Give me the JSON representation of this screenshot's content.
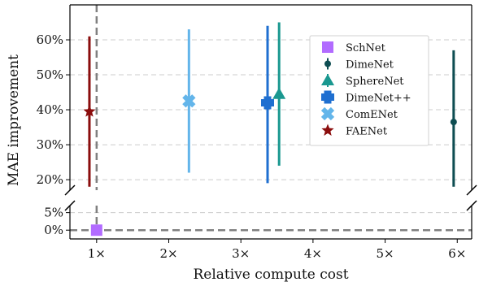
{
  "chart_data": {
    "type": "scatter",
    "xlabel": "Relative compute cost",
    "ylabel": "MAE improvement",
    "x_ticks": [
      "1×",
      "2×",
      "3×",
      "4×",
      "5×",
      "6×"
    ],
    "xlim": [
      0.63,
      6.2
    ],
    "ylim_top": [
      17,
      70
    ],
    "ylim_bottom": [
      -2.5,
      7
    ],
    "y_ticks_top": [
      "20%",
      "30%",
      "40%",
      "50%",
      "60%"
    ],
    "y_ticks_bottom": [
      "0%",
      "5%"
    ],
    "y_tick_values_top": [
      20,
      30,
      40,
      50,
      60
    ],
    "y_tick_values_bottom": [
      0,
      5
    ],
    "grid": true,
    "broken_y_axis": true,
    "reference_lines": {
      "vertical_x": 1.0,
      "horizontal_y": 0
    },
    "legend_position": "upper-right",
    "series": [
      {
        "name": "SchNet",
        "x": 1.0,
        "y": 0,
        "y_low": 0,
        "y_high": 0,
        "marker": "square",
        "color": "#b26bff"
      },
      {
        "name": "DimeNet",
        "x": 5.95,
        "y": 36.5,
        "y_low": 18,
        "y_high": 57,
        "marker": "circle",
        "color": "#0e4d52"
      },
      {
        "name": "SphereNet",
        "x": 3.53,
        "y": 44.5,
        "y_low": 24,
        "y_high": 65,
        "marker": "triangle",
        "color": "#1a9890"
      },
      {
        "name": "DimeNet++",
        "x": 3.37,
        "y": 42.0,
        "y_low": 19,
        "y_high": 64,
        "marker": "plus",
        "color": "#1f6fd0"
      },
      {
        "name": "ComENet",
        "x": 2.28,
        "y": 42.5,
        "y_low": 22,
        "y_high": 63,
        "marker": "x",
        "color": "#63b5ea"
      },
      {
        "name": "FAENet",
        "x": 0.9,
        "y": 39.5,
        "y_low": 18,
        "y_high": 61,
        "marker": "star",
        "color": "#8b0d0d"
      }
    ]
  }
}
